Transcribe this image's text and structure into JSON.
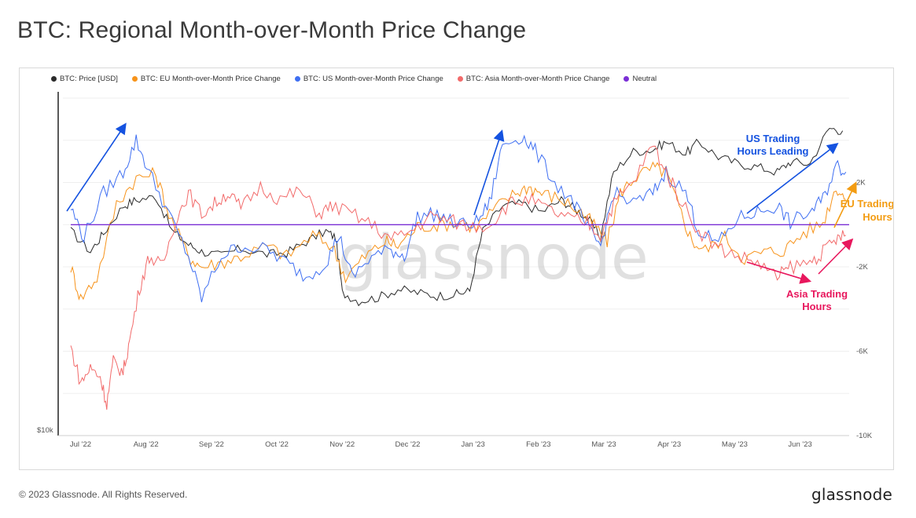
{
  "title": "BTC: Regional Month-over-Month Price Change",
  "footer": {
    "copyright": "© 2023 Glassnode. All Rights Reserved.",
    "logo": "glassnode"
  },
  "watermark": "glassnode",
  "legend": [
    {
      "label": "BTC: Price [USD]",
      "color": "#2b2b2b"
    },
    {
      "label": "BTC: EU Month-over-Month Price Change",
      "color": "#f7931a"
    },
    {
      "label": "BTC: US Month-over-Month Price Change",
      "color": "#3f6ff2"
    },
    {
      "label": "BTC: Asia Month-over-Month Price Change",
      "color": "#f26b6b"
    },
    {
      "label": "Neutral",
      "color": "#7b2fd6"
    }
  ],
  "annotations": {
    "us": {
      "line1": "US Trading",
      "line2": "Hours Leading",
      "color": "#1452e0"
    },
    "eu": {
      "line1": "EU Trading",
      "line2": "Hours",
      "color": "#f39c12"
    },
    "asia": {
      "line1": "Asia Trading",
      "line2": "Hours",
      "color": "#e8175d"
    }
  },
  "chart_data": {
    "type": "line",
    "x_ticks": [
      "Jul '22",
      "Aug '22",
      "Sep '22",
      "Oct '22",
      "Nov '22",
      "Dec '22",
      "Jan '23",
      "Feb '23",
      "Mar '23",
      "Apr '23",
      "May '23",
      "Jun '23"
    ],
    "left_axis": {
      "ticks": [
        "$10k"
      ],
      "scale": "log"
    },
    "right_axis": {
      "ticks": [
        "2K",
        "-2K",
        "-6K",
        "-10K"
      ],
      "ylim": [
        -10000,
        6000
      ]
    },
    "neutral": 0,
    "series": [
      {
        "name": "BTC: Price [USD]",
        "color": "#2b2b2b",
        "axis": "left",
        "points": [
          [
            0,
            21000
          ],
          [
            0.3,
            19500
          ],
          [
            0.5,
            20800
          ],
          [
            0.8,
            23000
          ],
          [
            1.0,
            23500
          ],
          [
            1.3,
            23800
          ],
          [
            1.55,
            21000
          ],
          [
            1.8,
            20000
          ],
          [
            2.0,
            19500
          ],
          [
            2.3,
            19200
          ],
          [
            2.6,
            19700
          ],
          [
            3.0,
            19300
          ],
          [
            3.3,
            19400
          ],
          [
            3.6,
            20200
          ],
          [
            3.9,
            21000
          ],
          [
            4.05,
            20500
          ],
          [
            4.15,
            16800
          ],
          [
            4.4,
            16300
          ],
          [
            4.7,
            16500
          ],
          [
            5.0,
            17000
          ],
          [
            5.3,
            16800
          ],
          [
            5.6,
            16600
          ],
          [
            5.9,
            16700
          ],
          [
            6.1,
            16900
          ],
          [
            6.3,
            21000
          ],
          [
            6.6,
            23000
          ],
          [
            6.9,
            23200
          ],
          [
            7.2,
            22500
          ],
          [
            7.5,
            23500
          ],
          [
            7.7,
            22800
          ],
          [
            7.9,
            22000
          ],
          [
            8.1,
            20500
          ],
          [
            8.3,
            26000
          ],
          [
            8.6,
            28000
          ],
          [
            8.9,
            28200
          ],
          [
            9.1,
            29000
          ],
          [
            9.4,
            27800
          ],
          [
            9.6,
            29000
          ],
          [
            9.9,
            27500
          ],
          [
            10.2,
            26800
          ],
          [
            10.5,
            26500
          ],
          [
            10.8,
            26000
          ],
          [
            11.0,
            27000
          ],
          [
            11.3,
            26800
          ],
          [
            11.6,
            30500
          ],
          [
            11.8,
            30200
          ]
        ]
      },
      {
        "name": "BTC: EU Month-over-Month Price Change",
        "color": "#f7931a",
        "axis": "right",
        "points": [
          [
            0,
            -2000
          ],
          [
            0.15,
            -3500
          ],
          [
            0.4,
            -2500
          ],
          [
            0.7,
            1000
          ],
          [
            1.0,
            2200
          ],
          [
            1.3,
            2400
          ],
          [
            1.5,
            500
          ],
          [
            1.8,
            -1500
          ],
          [
            2.0,
            -2000
          ],
          [
            2.3,
            -1800
          ],
          [
            2.6,
            -1500
          ],
          [
            3.0,
            -1000
          ],
          [
            3.3,
            -1500
          ],
          [
            3.7,
            -500
          ],
          [
            4.0,
            -1000
          ],
          [
            4.2,
            -2500
          ],
          [
            4.5,
            -1500
          ],
          [
            4.8,
            -800
          ],
          [
            5.0,
            -1000
          ],
          [
            5.3,
            -100
          ],
          [
            5.6,
            0
          ],
          [
            5.9,
            100
          ],
          [
            6.2,
            -100
          ],
          [
            6.5,
            800
          ],
          [
            6.8,
            1500
          ],
          [
            7.0,
            1800
          ],
          [
            7.2,
            1500
          ],
          [
            7.5,
            1200
          ],
          [
            7.8,
            600
          ],
          [
            8.0,
            0
          ],
          [
            8.2,
            -800
          ],
          [
            8.4,
            1500
          ],
          [
            8.6,
            2200
          ],
          [
            8.9,
            2700
          ],
          [
            9.1,
            2500
          ],
          [
            9.3,
            800
          ],
          [
            9.5,
            -800
          ],
          [
            9.7,
            -1200
          ],
          [
            10.0,
            -600
          ],
          [
            10.3,
            -1600
          ],
          [
            10.6,
            -1300
          ],
          [
            10.9,
            -1200
          ],
          [
            11.2,
            -400
          ],
          [
            11.5,
            100
          ],
          [
            11.7,
            1800
          ],
          [
            11.85,
            1200
          ]
        ]
      },
      {
        "name": "BTC: US Month-over-Month Price Change",
        "color": "#3f6ff2",
        "axis": "right",
        "points": [
          [
            0,
            800
          ],
          [
            0.2,
            -600
          ],
          [
            0.5,
            1500
          ],
          [
            0.8,
            2500
          ],
          [
            1.0,
            4000
          ],
          [
            1.2,
            2500
          ],
          [
            1.5,
            500
          ],
          [
            1.8,
            -1500
          ],
          [
            2.0,
            -3500
          ],
          [
            2.3,
            -1500
          ],
          [
            2.6,
            -1000
          ],
          [
            3.0,
            -1200
          ],
          [
            3.3,
            -1800
          ],
          [
            3.6,
            -2500
          ],
          [
            3.9,
            -1800
          ],
          [
            4.1,
            -500
          ],
          [
            4.3,
            -2500
          ],
          [
            4.6,
            -1500
          ],
          [
            4.9,
            -1200
          ],
          [
            5.1,
            -1500
          ],
          [
            5.3,
            400
          ],
          [
            5.6,
            500
          ],
          [
            5.9,
            0
          ],
          [
            6.2,
            100
          ],
          [
            6.4,
            1000
          ],
          [
            6.6,
            3800
          ],
          [
            6.9,
            4200
          ],
          [
            7.1,
            3500
          ],
          [
            7.4,
            2000
          ],
          [
            7.7,
            1000
          ],
          [
            7.9,
            -200
          ],
          [
            8.1,
            -1000
          ],
          [
            8.3,
            1500
          ],
          [
            8.6,
            1000
          ],
          [
            8.9,
            1500
          ],
          [
            9.1,
            2500
          ],
          [
            9.4,
            1500
          ],
          [
            9.6,
            -300
          ],
          [
            9.9,
            -900
          ],
          [
            10.2,
            300
          ],
          [
            10.5,
            600
          ],
          [
            10.8,
            900
          ],
          [
            11.0,
            100
          ],
          [
            11.3,
            600
          ],
          [
            11.5,
            1200
          ],
          [
            11.7,
            2800
          ],
          [
            11.85,
            2500
          ]
        ]
      },
      {
        "name": "BTC: Asia Month-over-Month Price Change",
        "color": "#f26b6b",
        "axis": "right",
        "points": [
          [
            0,
            -5800
          ],
          [
            0.15,
            -7500
          ],
          [
            0.3,
            -6800
          ],
          [
            0.45,
            -7200
          ],
          [
            0.55,
            -8500
          ],
          [
            0.65,
            -6500
          ],
          [
            0.8,
            -7000
          ],
          [
            0.9,
            -5500
          ],
          [
            1.05,
            -3000
          ],
          [
            1.2,
            -1500
          ],
          [
            1.4,
            -2000
          ],
          [
            1.6,
            200
          ],
          [
            1.8,
            1500
          ],
          [
            2.0,
            500
          ],
          [
            2.2,
            1000
          ],
          [
            2.4,
            1500
          ],
          [
            2.6,
            800
          ],
          [
            2.9,
            1800
          ],
          [
            3.2,
            1200
          ],
          [
            3.5,
            1600
          ],
          [
            3.8,
            500
          ],
          [
            4.0,
            900
          ],
          [
            4.3,
            500
          ],
          [
            4.6,
            0
          ],
          [
            4.9,
            -700
          ],
          [
            5.2,
            -300
          ],
          [
            5.5,
            400
          ],
          [
            5.8,
            200
          ],
          [
            6.1,
            -100
          ],
          [
            6.4,
            0
          ],
          [
            6.7,
            1000
          ],
          [
            7.0,
            1200
          ],
          [
            7.3,
            700
          ],
          [
            7.6,
            300
          ],
          [
            7.9,
            100
          ],
          [
            8.1,
            -500
          ],
          [
            8.3,
            1000
          ],
          [
            8.6,
            2000
          ],
          [
            8.9,
            3800
          ],
          [
            9.1,
            2500
          ],
          [
            9.3,
            1300
          ],
          [
            9.6,
            -300
          ],
          [
            9.9,
            -1100
          ],
          [
            10.2,
            -1500
          ],
          [
            10.5,
            -1800
          ],
          [
            10.8,
            -2500
          ],
          [
            11.0,
            -2000
          ],
          [
            11.3,
            -1800
          ],
          [
            11.5,
            -1300
          ],
          [
            11.7,
            -700
          ],
          [
            11.85,
            -500
          ]
        ]
      },
      {
        "name": "Neutral",
        "color": "#7b2fd6",
        "axis": "right",
        "points": [
          [
            0,
            0
          ],
          [
            11.9,
            0
          ]
        ]
      }
    ]
  }
}
